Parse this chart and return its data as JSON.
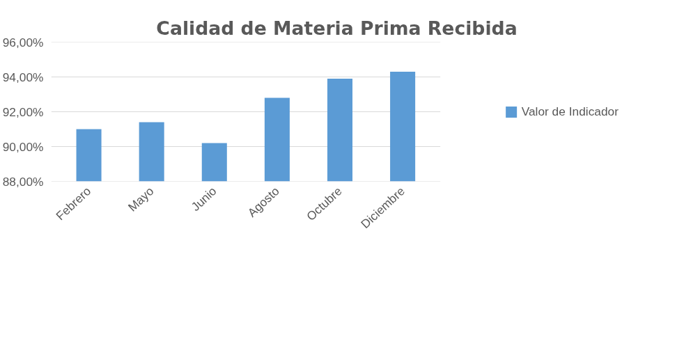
{
  "chart_data": {
    "type": "bar",
    "title": "Calidad de Materia Prima Recibida",
    "categories": [
      "Febrero",
      "Mayo",
      "Junio",
      "Agosto",
      "Octubre",
      "Diciembre"
    ],
    "series": [
      {
        "name": "Valor de Indicador",
        "color": "#5b9bd5",
        "values": [
          91.0,
          91.4,
          90.2,
          92.8,
          93.9,
          94.3
        ]
      }
    ],
    "ylim": [
      88,
      96
    ],
    "yticks": [
      {
        "value": 88,
        "label": "88,00%"
      },
      {
        "value": 90,
        "label": "90,00%"
      },
      {
        "value": 92,
        "label": "92,00%"
      },
      {
        "value": 94,
        "label": "94,00%"
      },
      {
        "value": 96,
        "label": "96,00%"
      }
    ],
    "grid": "y",
    "legend": "right"
  }
}
